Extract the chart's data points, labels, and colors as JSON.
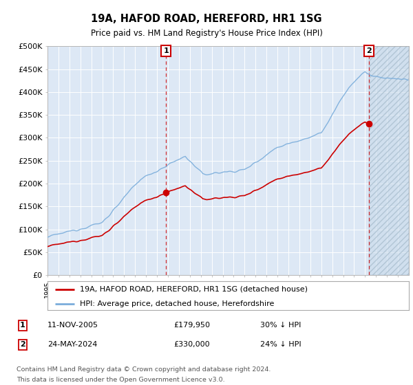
{
  "title": "19A, HAFOD ROAD, HEREFORD, HR1 1SG",
  "subtitle": "Price paid vs. HM Land Registry's House Price Index (HPI)",
  "ylim": [
    0,
    500000
  ],
  "yticks": [
    0,
    50000,
    100000,
    150000,
    200000,
    250000,
    300000,
    350000,
    400000,
    450000,
    500000
  ],
  "ytick_labels": [
    "£0",
    "£50K",
    "£100K",
    "£150K",
    "£200K",
    "£250K",
    "£300K",
    "£350K",
    "£400K",
    "£450K",
    "£500K"
  ],
  "hpi_color": "#7aaddb",
  "price_color": "#cc0000",
  "marker1_price": 179950,
  "marker1_date_str": "11-NOV-2005",
  "marker2_price": 330000,
  "marker2_date_str": "24-MAY-2024",
  "legend_line1": "19A, HAFOD ROAD, HEREFORD, HR1 1SG (detached house)",
  "legend_line2": "HPI: Average price, detached house, Herefordshire",
  "background_color": "#ffffff",
  "plot_bg_color": "#dde8f5",
  "grid_color": "#ffffff",
  "future_hatch_color": "#b8cfe0",
  "footnote1": "Contains HM Land Registry data © Crown copyright and database right 2024.",
  "footnote2": "This data is licensed under the Open Government Licence v3.0."
}
